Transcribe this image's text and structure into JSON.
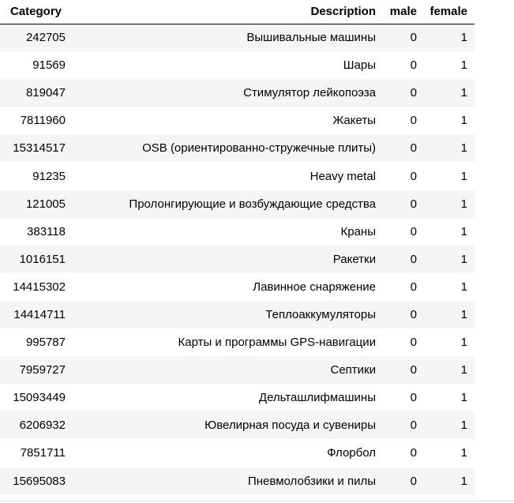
{
  "table": {
    "columns": [
      "Category",
      "Description",
      "male",
      "female"
    ],
    "rows": [
      {
        "category": "242705",
        "description": "Вышивальные машины",
        "male": "0",
        "female": "1"
      },
      {
        "category": "91569",
        "description": "Шары",
        "male": "0",
        "female": "1"
      },
      {
        "category": "819047",
        "description": "Стимулятор лейкопоэза",
        "male": "0",
        "female": "1"
      },
      {
        "category": "7811960",
        "description": "Жакеты",
        "male": "0",
        "female": "1"
      },
      {
        "category": "15314517",
        "description": "OSB (ориентированно-стружечные плиты)",
        "male": "0",
        "female": "1"
      },
      {
        "category": "91235",
        "description": "Heavy metal",
        "male": "0",
        "female": "1"
      },
      {
        "category": "121005",
        "description": "Пролонгирующие и возбуждающие средства",
        "male": "0",
        "female": "1"
      },
      {
        "category": "383118",
        "description": "Краны",
        "male": "0",
        "female": "1"
      },
      {
        "category": "1016151",
        "description": "Ракетки",
        "male": "0",
        "female": "1"
      },
      {
        "category": "14415302",
        "description": "Лавинное снаряжение",
        "male": "0",
        "female": "1"
      },
      {
        "category": "14414711",
        "description": "Теплоаккумуляторы",
        "male": "0",
        "female": "1"
      },
      {
        "category": "995787",
        "description": "Карты и программы GPS-навигации",
        "male": "0",
        "female": "1"
      },
      {
        "category": "7959727",
        "description": "Септики",
        "male": "0",
        "female": "1"
      },
      {
        "category": "15093449",
        "description": "Дельташлифмашины",
        "male": "0",
        "female": "1"
      },
      {
        "category": "6206932",
        "description": "Ювелирная посуда и сувениры",
        "male": "0",
        "female": "1"
      },
      {
        "category": "7851711",
        "description": "Флорбол",
        "male": "0",
        "female": "1"
      },
      {
        "category": "15695083",
        "description": "Пневмолобзики и пилы",
        "male": "0",
        "female": "1"
      }
    ]
  }
}
